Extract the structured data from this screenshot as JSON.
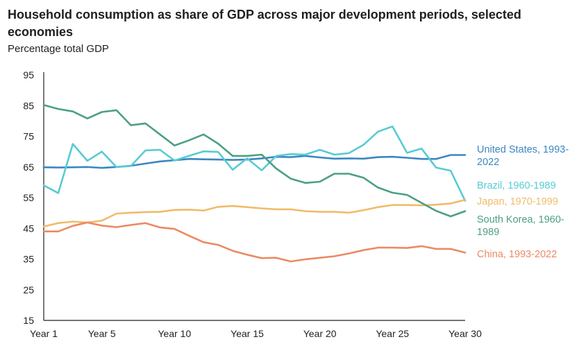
{
  "title": "Household consumption as share of GDP across major development periods, selected economies",
  "subtitle": "Percentage total GDP",
  "colors": {
    "united_states": "#3a87c0",
    "brazil": "#57cbd3",
    "japan": "#f0bb6a",
    "south_korea": "#4c9f84",
    "china": "#ea8a62",
    "axis": "#222222"
  },
  "chart_data": {
    "type": "line",
    "title": "Household consumption as share of GDP across major development periods, selected economies",
    "ylabel": "Percentage total GDP",
    "xlabel": "",
    "x": [
      1,
      2,
      3,
      4,
      5,
      6,
      7,
      8,
      9,
      10,
      11,
      12,
      13,
      14,
      15,
      16,
      17,
      18,
      19,
      20,
      21,
      22,
      23,
      24,
      25,
      26,
      27,
      28,
      29,
      30
    ],
    "x_tick_labels": [
      "Year 1",
      "Year 5",
      "Year 10",
      "Year 15",
      "Year 20",
      "Year 25",
      "Year 30"
    ],
    "x_tick_positions": [
      1,
      5,
      10,
      15,
      20,
      25,
      30
    ],
    "y_ticks": [
      15,
      25,
      35,
      45,
      55,
      65,
      75,
      85,
      95
    ],
    "ylim": [
      15,
      95
    ],
    "grid": false,
    "legend": "direct labels at right end of lines",
    "series": [
      {
        "key": "united_states",
        "name": "United States, 1993-2022",
        "label_lines": [
          "United States, 1993-",
          "2022"
        ],
        "values": [
          64.9,
          64.8,
          64.9,
          65.0,
          64.7,
          65.0,
          65.4,
          66.1,
          66.8,
          67.2,
          67.6,
          67.5,
          67.4,
          67.3,
          67.4,
          67.8,
          68.3,
          68.2,
          68.6,
          68.1,
          67.7,
          67.8,
          67.7,
          68.2,
          68.3,
          68.0,
          67.6,
          67.6,
          68.9,
          68.9
        ]
      },
      {
        "key": "brazil",
        "name": "Brazil, 1960-1989",
        "label_lines": [
          "Brazil, 1960-1989"
        ],
        "values": [
          59.0,
          56.5,
          72.5,
          67.0,
          70.0,
          65.0,
          65.3,
          70.4,
          70.6,
          67.1,
          68.6,
          70.1,
          69.9,
          64.1,
          67.8,
          63.9,
          68.6,
          69.2,
          69.0,
          70.6,
          69.0,
          69.5,
          72.2,
          76.5,
          78.2,
          69.6,
          71.0,
          64.8,
          63.8,
          54.0
        ]
      },
      {
        "key": "japan",
        "name": "Japan, 1970-1999",
        "label_lines": [
          "Japan, 1970-1999"
        ],
        "values": [
          45.6,
          46.7,
          47.2,
          46.9,
          47.5,
          49.8,
          50.1,
          50.3,
          50.4,
          51.0,
          51.1,
          50.8,
          52.0,
          52.3,
          51.9,
          51.5,
          51.2,
          51.2,
          50.6,
          50.4,
          50.4,
          50.1,
          50.9,
          51.9,
          52.6,
          52.6,
          52.5,
          52.7,
          53.1,
          54.3
        ]
      },
      {
        "key": "south_korea",
        "name": "South Korea, 1960-1989",
        "label_lines": [
          "South Korea, 1960-",
          "1989"
        ],
        "values": [
          85.2,
          83.9,
          83.1,
          80.8,
          82.9,
          83.5,
          78.6,
          79.2,
          75.6,
          72.0,
          73.7,
          75.6,
          72.6,
          68.6,
          68.6,
          69.0,
          64.5,
          61.2,
          59.8,
          60.2,
          62.8,
          62.8,
          61.5,
          58.3,
          56.6,
          55.9,
          53.3,
          50.7,
          48.9,
          50.6
        ]
      },
      {
        "key": "china",
        "name": "China, 1993-2022",
        "label_lines": [
          "China, 1993-2022"
        ],
        "values": [
          44.0,
          44.0,
          45.8,
          46.9,
          45.9,
          45.4,
          46.1,
          46.7,
          45.3,
          44.8,
          42.6,
          40.5,
          39.6,
          37.7,
          36.4,
          35.3,
          35.4,
          34.2,
          34.9,
          35.4,
          35.9,
          36.8,
          37.9,
          38.7,
          38.7,
          38.6,
          39.2,
          38.3,
          38.3,
          37.1
        ]
      }
    ]
  }
}
